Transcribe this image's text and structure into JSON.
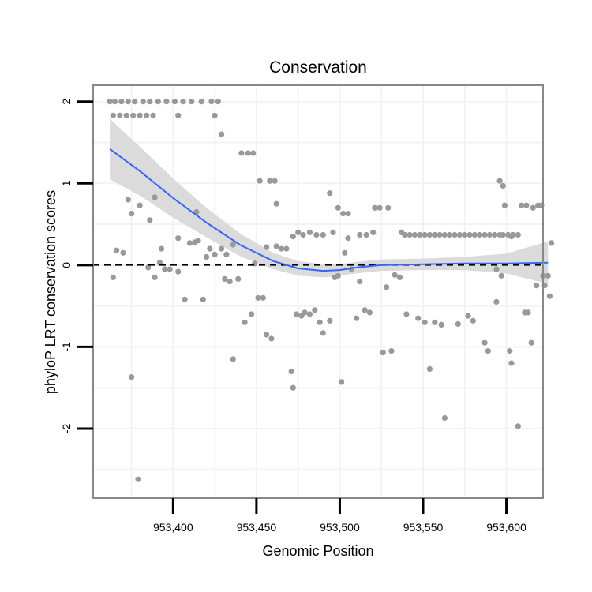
{
  "chart_data": {
    "type": "scatter",
    "title": "Conservation",
    "xlabel": "Genomic Position",
    "ylabel": "phyloP LRT conservation scores",
    "xlim": [
      953352,
      953622
    ],
    "ylim": [
      -2.85,
      2.2
    ],
    "xticks": [
      953400,
      953450,
      953500,
      953550,
      953600
    ],
    "xtick_labels": [
      "953,400",
      "953,450",
      "953,500",
      "953,550",
      "953,600"
    ],
    "yticks": [
      -2,
      -1,
      0,
      1,
      2
    ],
    "ytick_labels": [
      "-2",
      "-1",
      "0",
      "1",
      "2"
    ],
    "reference_line": {
      "y": 0,
      "style": "dashed"
    },
    "colors": {
      "points": "#999999",
      "smooth": "#3366ff",
      "band": "#d9d9d9",
      "grid": "#f3f3f3",
      "frame": "#888888"
    },
    "points": [
      [
        953362,
        2.0
      ],
      [
        953365,
        2.0
      ],
      [
        953369,
        2.0
      ],
      [
        953373,
        2.0
      ],
      [
        953364,
        1.83
      ],
      [
        953368,
        1.83
      ],
      [
        953372,
        1.83
      ],
      [
        953376,
        1.83
      ],
      [
        953380,
        1.83
      ],
      [
        953384,
        1.83
      ],
      [
        953388,
        1.83
      ],
      [
        953377,
        2.0
      ],
      [
        953382,
        2.0
      ],
      [
        953386,
        2.0
      ],
      [
        953391,
        2.0
      ],
      [
        953396,
        2.0
      ],
      [
        953401,
        2.0
      ],
      [
        953406,
        2.0
      ],
      [
        953411,
        2.0
      ],
      [
        953417,
        2.0
      ],
      [
        953423,
        2.0
      ],
      [
        953427,
        2.0
      ],
      [
        953403,
        1.83
      ],
      [
        953425,
        1.83
      ],
      [
        953429,
        1.6
      ],
      [
        953441,
        1.37
      ],
      [
        953445,
        1.37
      ],
      [
        953448,
        1.37
      ],
      [
        953452,
        1.03
      ],
      [
        953458,
        1.03
      ],
      [
        953461,
        1.03
      ],
      [
        953462,
        0.75
      ],
      [
        953366,
        0.18
      ],
      [
        953370,
        0.15
      ],
      [
        953373,
        0.8
      ],
      [
        953375,
        0.63
      ],
      [
        953380,
        0.73
      ],
      [
        953386,
        0.55
      ],
      [
        953389,
        0.83
      ],
      [
        953375,
        -1.37
      ],
      [
        953379,
        -2.62
      ],
      [
        953364,
        -0.15
      ],
      [
        953385,
        -0.03
      ],
      [
        953389,
        -0.15
      ],
      [
        953393,
        0.2
      ],
      [
        953392,
        0.03
      ],
      [
        953395,
        -0.05
      ],
      [
        953398,
        -0.05
      ],
      [
        953403,
        -0.08
      ],
      [
        953403,
        0.33
      ],
      [
        953407,
        -0.42
      ],
      [
        953410,
        0.27
      ],
      [
        953413,
        0.28
      ],
      [
        953414,
        0.65
      ],
      [
        953415,
        0.3
      ],
      [
        953418,
        -0.42
      ],
      [
        953420,
        0.1
      ],
      [
        953422,
        0.2
      ],
      [
        953425,
        0.13
      ],
      [
        953429,
        0.2
      ],
      [
        953431,
        -0.17
      ],
      [
        953432,
        0.13
      ],
      [
        953434,
        -0.2
      ],
      [
        953436,
        0.25
      ],
      [
        953436,
        -1.15
      ],
      [
        953439,
        -0.17
      ],
      [
        953443,
        -0.7
      ],
      [
        953447,
        -0.6
      ],
      [
        953449,
        0.02
      ],
      [
        953451,
        -0.4
      ],
      [
        953454,
        -0.4
      ],
      [
        953456,
        -0.85
      ],
      [
        953459,
        -0.9
      ],
      [
        953456,
        0.22
      ],
      [
        953462,
        0.23
      ],
      [
        953465,
        0.2
      ],
      [
        953468,
        0.2
      ],
      [
        953471,
        -1.3
      ],
      [
        953472,
        -1.5
      ],
      [
        953474,
        -0.6
      ],
      [
        953477,
        -0.62
      ],
      [
        953479,
        -0.58
      ],
      [
        953482,
        -0.6
      ],
      [
        953485,
        -0.55
      ],
      [
        953488,
        -0.7
      ],
      [
        953490,
        -0.83
      ],
      [
        953494,
        -0.68
      ],
      [
        953497,
        -0.15
      ],
      [
        953499,
        -0.13
      ],
      [
        953501,
        -1.43
      ],
      [
        953503,
        0.15
      ],
      [
        953505,
        0.33
      ],
      [
        953507,
        -0.05
      ],
      [
        953510,
        -0.65
      ],
      [
        953512,
        -0.2
      ],
      [
        953515,
        -0.55
      ],
      [
        953518,
        -0.58
      ],
      [
        953521,
        0.7
      ],
      [
        953524,
        0.7
      ],
      [
        953526,
        -1.07
      ],
      [
        953528,
        -0.27
      ],
      [
        953529,
        0.7
      ],
      [
        953531,
        -1.05
      ],
      [
        953533,
        -0.12
      ],
      [
        953536,
        -0.15
      ],
      [
        953540,
        -0.6
      ],
      [
        953472,
        0.35
      ],
      [
        953475,
        0.4
      ],
      [
        953478,
        0.37
      ],
      [
        953482,
        0.4
      ],
      [
        953486,
        0.37
      ],
      [
        953490,
        0.37
      ],
      [
        953494,
        0.88
      ],
      [
        953496,
        0.4
      ],
      [
        953499,
        0.7
      ],
      [
        953502,
        0.63
      ],
      [
        953505,
        0.63
      ],
      [
        953512,
        0.37
      ],
      [
        953516,
        0.37
      ],
      [
        953520,
        0.4
      ],
      [
        953537,
        0.4
      ],
      [
        953539,
        0.37
      ],
      [
        953542,
        0.37
      ],
      [
        953545,
        0.37
      ],
      [
        953548,
        0.37
      ],
      [
        953551,
        0.37
      ],
      [
        953554,
        0.37
      ],
      [
        953557,
        0.37
      ],
      [
        953560,
        0.37
      ],
      [
        953563,
        0.37
      ],
      [
        953566,
        0.37
      ],
      [
        953569,
        0.37
      ],
      [
        953572,
        0.37
      ],
      [
        953575,
        0.37
      ],
      [
        953578,
        0.37
      ],
      [
        953581,
        0.37
      ],
      [
        953584,
        0.37
      ],
      [
        953587,
        0.37
      ],
      [
        953590,
        0.37
      ],
      [
        953593,
        0.37
      ],
      [
        953596,
        0.37
      ],
      [
        953598,
        0.37
      ],
      [
        953601,
        0.37
      ],
      [
        953604,
        0.37
      ],
      [
        953607,
        0.37
      ],
      [
        953547,
        -0.65
      ],
      [
        953551,
        -0.7
      ],
      [
        953554,
        -1.27
      ],
      [
        953557,
        -0.7
      ],
      [
        953561,
        -0.73
      ],
      [
        953563,
        -1.87
      ],
      [
        953571,
        -0.72
      ],
      [
        953577,
        -0.62
      ],
      [
        953580,
        -0.68
      ],
      [
        953587,
        -0.95
      ],
      [
        953589,
        -1.05
      ],
      [
        953594,
        -0.45
      ],
      [
        953596,
        1.03
      ],
      [
        953598,
        0.97
      ],
      [
        953599,
        0.73
      ],
      [
        953602,
        -1.05
      ],
      [
        953603,
        -1.2
      ],
      [
        953607,
        -1.97
      ],
      [
        953609,
        0.73
      ],
      [
        953611,
        -0.58
      ],
      [
        953613,
        -0.58
      ],
      [
        953615,
        -0.95
      ],
      [
        953616,
        0.7
      ],
      [
        953619,
        0.73
      ],
      [
        953621,
        0.73
      ],
      [
        953618,
        -0.25
      ],
      [
        953622,
        -0.13
      ],
      [
        953623,
        -0.25
      ],
      [
        953625,
        -0.13
      ],
      [
        953626,
        -0.38
      ],
      [
        953627,
        0.27
      ],
      [
        953594,
        -0.05
      ],
      [
        953597,
        -0.13
      ],
      [
        953603,
        0.35
      ],
      [
        953612,
        0.73
      ]
    ],
    "smooth": {
      "x": [
        953362,
        953380,
        953400,
        953420,
        953440,
        953460,
        953475,
        953490,
        953500,
        953510,
        953525,
        953550,
        953575,
        953600,
        953625
      ],
      "y": [
        1.42,
        1.15,
        0.82,
        0.52,
        0.25,
        0.05,
        -0.04,
        -0.07,
        -0.06,
        -0.03,
        0.0,
        0.01,
        0.02,
        0.02,
        0.03
      ],
      "band_half_width": [
        0.37,
        0.3,
        0.24,
        0.18,
        0.14,
        0.1,
        0.09,
        0.08,
        0.07,
        0.07,
        0.07,
        0.07,
        0.08,
        0.12,
        0.26
      ]
    }
  }
}
